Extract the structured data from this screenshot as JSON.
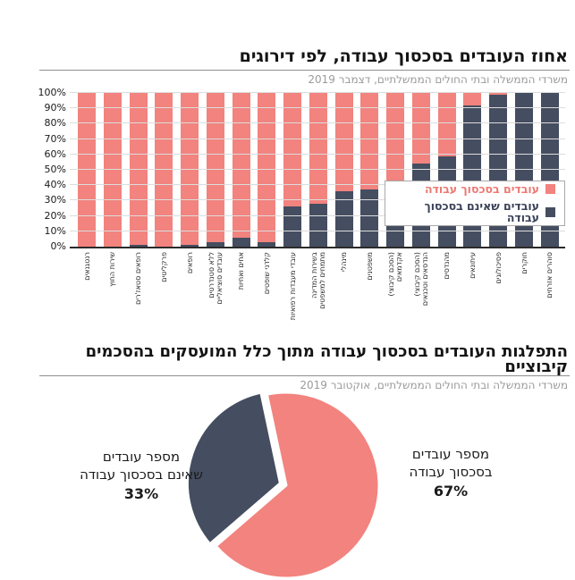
{
  "colors": {
    "in_dispute_pink": "#F2837E",
    "not_in_dispute_dark": "#454D60",
    "legend_text_pink": "#ED7A73",
    "legend_text_dark": "#3A4258",
    "grid": "#dcdcdc",
    "axis": "#2b2b2b",
    "subtitle_gray": "#9b9b9b"
  },
  "chart_data": [
    {
      "type": "bar",
      "stacked": true,
      "title": "אחוז העובדים בסכסוך עבודה, לפי דירוגים",
      "subtitle": "משרדי הממשלה ובתי החולים הממשלתיים, דצמבר 2019",
      "categories": [
        "רנטגנאים",
        "שירות החוץ",
        "רופאים סטאז'רים",
        "פרקליטים",
        "רופאים",
        "עובדים סוציאליים ללא סטנדרטים",
        "אחים ואחיות",
        "קלדני שופטים",
        "עובדי מעבדות רפואיות",
        "מתמחים למשפטים בשירות המדינה",
        "מינהלי",
        "משפטנים",
        "אקדמאים (הסכם קיבוצי)",
        "הנדסאים וטכנאים (הסכם קיבוצי)",
        "מהנדסים",
        "עיתונאים",
        "פסיכולוגים",
        "חוקרים",
        "סוהרים אזרחים"
      ],
      "category_lines": [
        [
          "רנטגנאים"
        ],
        [
          "שירות החוץ"
        ],
        [
          "רופאים סטאז'רים"
        ],
        [
          "פרקליטים"
        ],
        [
          "רופאים"
        ],
        [
          "עובדים סוציאליים",
          "ללא סטנדרטים"
        ],
        [
          "אחים ואחיות"
        ],
        [
          "קלדני שופטים"
        ],
        [
          "עובדי מעבדות רפואיות"
        ],
        [
          "מתמחים למשפטים",
          "בשירות המדינה"
        ],
        [
          "מינהלי"
        ],
        [
          "משפטנים"
        ],
        [
          "אקדמאים",
          "(הסכם קיבוצי)"
        ],
        [
          "הנדסאים וטכנאים",
          "(הסכם קיבוצי)"
        ],
        [
          "מהנדסים"
        ],
        [
          "עיתונאים"
        ],
        [
          "פסיכולוגים"
        ],
        [
          "חוקרים"
        ],
        [
          "סוהרים אזרחים"
        ]
      ],
      "series": [
        {
          "name": "עובדים בסכסוך עבודה",
          "color": "#F2837E",
          "values": [
            100,
            100,
            99,
            100,
            99,
            97,
            94,
            97,
            74,
            72,
            64,
            63,
            59,
            46,
            41,
            8,
            1,
            0,
            0
          ]
        },
        {
          "name": "עובדים שאינם בסכסוך עבודה",
          "color": "#454D60",
          "values": [
            0,
            0,
            1,
            0,
            1,
            3,
            6,
            3,
            26,
            28,
            36,
            37,
            41,
            54,
            59,
            92,
            99,
            100,
            100
          ]
        }
      ],
      "ylim": [
        0,
        100
      ],
      "y_ticks": [
        0,
        10,
        20,
        30,
        40,
        50,
        60,
        70,
        80,
        90,
        100
      ],
      "y_tick_format": "{v}%",
      "grid": "horizontal",
      "legend_position": "inside-right"
    },
    {
      "type": "pie",
      "title": "התפלגות העובדים בסכסוך עבודה מתוך כלל המועסקים בהסכמים קיבוציים",
      "title_lines": [
        "התפלגות העובדים בסכסוך עבודה מתוך כלל המועסקים בהסכמים",
        "קיבוציים"
      ],
      "subtitle": "משרדי הממשלה ובתי החולים הממשלתיים, אוקטובר 2019",
      "labels": [
        "מספר עובדים בסכסוך עבודה",
        "מספר עובדים שאינם בסכסוך עבודה"
      ],
      "label_lines": [
        [
          "מספר עובדים",
          "בסכסוך עבודה"
        ],
        [
          "מספר עובדים",
          "שאינם בסכסוך עבודה"
        ]
      ],
      "values": [
        67,
        33
      ],
      "value_labels": [
        "67%",
        "33%"
      ],
      "colors": [
        "#F2837E",
        "#454D60"
      ],
      "exploded": [
        false,
        true
      ],
      "legend_position": "none"
    }
  ]
}
